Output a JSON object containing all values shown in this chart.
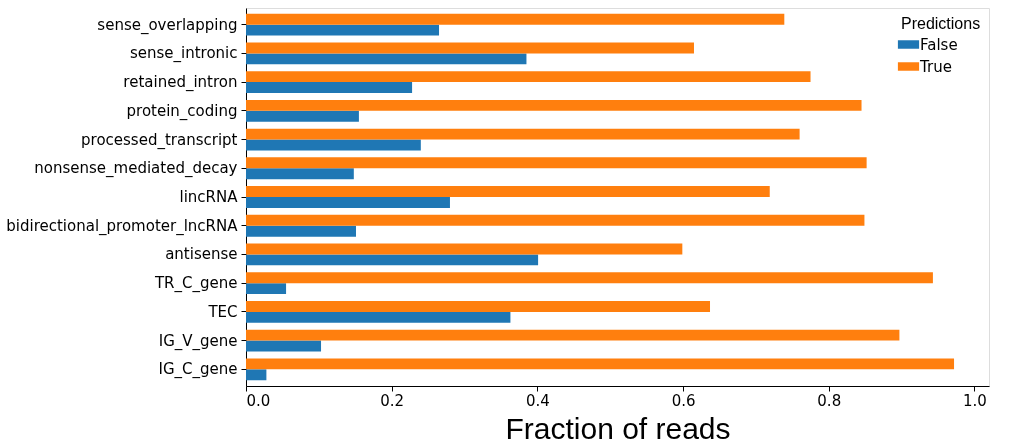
{
  "chart_data": {
    "type": "bar",
    "orientation": "horizontal",
    "xlabel": "Fraction of reads",
    "legend_title": "Predictions",
    "legend": "top right",
    "grid": false,
    "categories": [
      "sense_overlapping",
      "sense_intronic",
      "retained_intron",
      "protein_coding",
      "processed_transcript",
      "nonsense_mediated_decay",
      "lincRNA",
      "bidirectional_promoter_lncRNA",
      "antisense",
      "TR_C_gene",
      "TEC",
      "IG_V_gene",
      "IG_C_gene"
    ],
    "series": [
      {
        "name": "False",
        "color": "#1f77b4",
        "values": [
          0.265,
          0.385,
          0.228,
          0.155,
          0.24,
          0.148,
          0.28,
          0.151,
          0.401,
          0.055,
          0.363,
          0.103,
          0.028
        ]
      },
      {
        "name": "True",
        "color": "#ff7f0e",
        "values": [
          0.739,
          0.615,
          0.775,
          0.845,
          0.76,
          0.852,
          0.719,
          0.849,
          0.599,
          0.943,
          0.637,
          0.897,
          0.972
        ]
      }
    ],
    "xlim": [
      0,
      1.02
    ],
    "xticks": [
      {
        "value": 0,
        "label": "0.0"
      },
      {
        "value": 0.2,
        "label": "0.2"
      },
      {
        "value": 0.4,
        "label": "0.4"
      },
      {
        "value": 0.6,
        "label": "0.6"
      },
      {
        "value": 0.8,
        "label": "0.8"
      },
      {
        "value": 1,
        "label": "1.0"
      }
    ]
  }
}
